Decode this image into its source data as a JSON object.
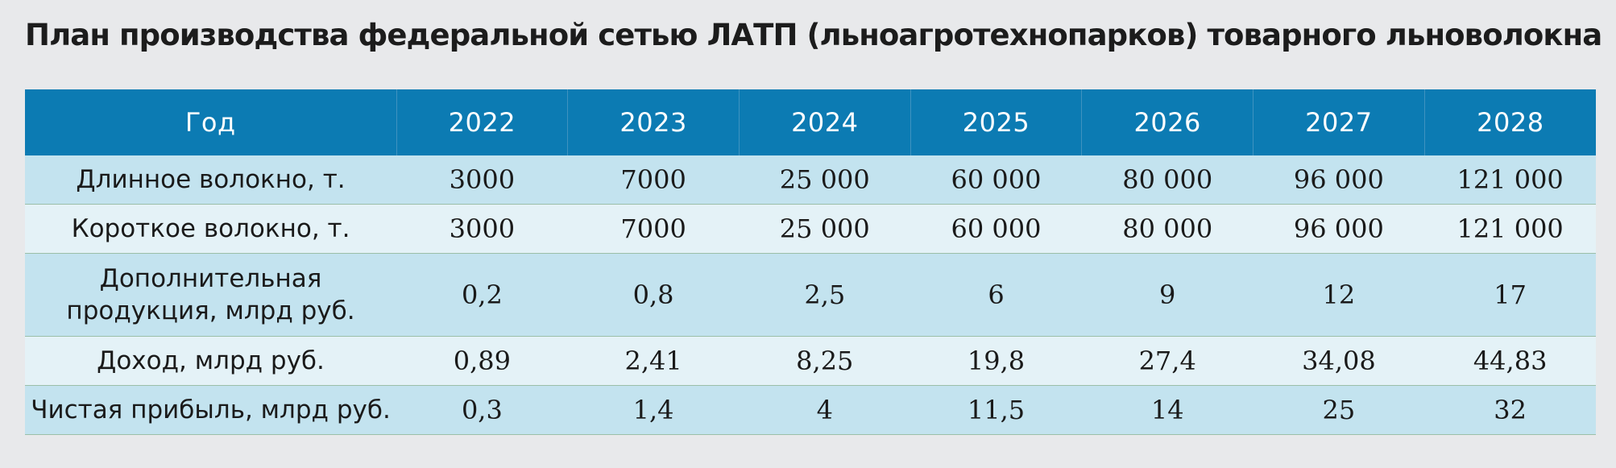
{
  "title": "План производства федеральной сетью ЛАТП (льноагротехнопарков) товарного льноволокна",
  "table": {
    "header": {
      "label": "Год",
      "years": [
        "2022",
        "2023",
        "2024",
        "2025",
        "2026",
        "2027",
        "2028"
      ]
    },
    "rows": [
      {
        "label": "Длинное волокно, т.",
        "values": [
          "3000",
          "7000",
          "25 000",
          "60 000",
          "80 000",
          "96 000",
          "121 000"
        ]
      },
      {
        "label": "Короткое волокно, т.",
        "values": [
          "3000",
          "7000",
          "25 000",
          "60 000",
          "80 000",
          "96 000",
          "121 000"
        ]
      },
      {
        "label_line1": "Дополнительная",
        "label_line2": "продукция, млрд руб.",
        "values": [
          "0,2",
          "0,8",
          "2,5",
          "6",
          "9",
          "12",
          "17"
        ]
      },
      {
        "label": "Доход, млрд руб.",
        "values": [
          "0,89",
          "2,41",
          "8,25",
          "19,8",
          "27,4",
          "34,08",
          "44,83"
        ]
      },
      {
        "label": "Чистая прибыль, млрд руб.",
        "values": [
          "0,3",
          "1,4",
          "4",
          "11,5",
          "14",
          "25",
          "32"
        ]
      }
    ]
  }
}
